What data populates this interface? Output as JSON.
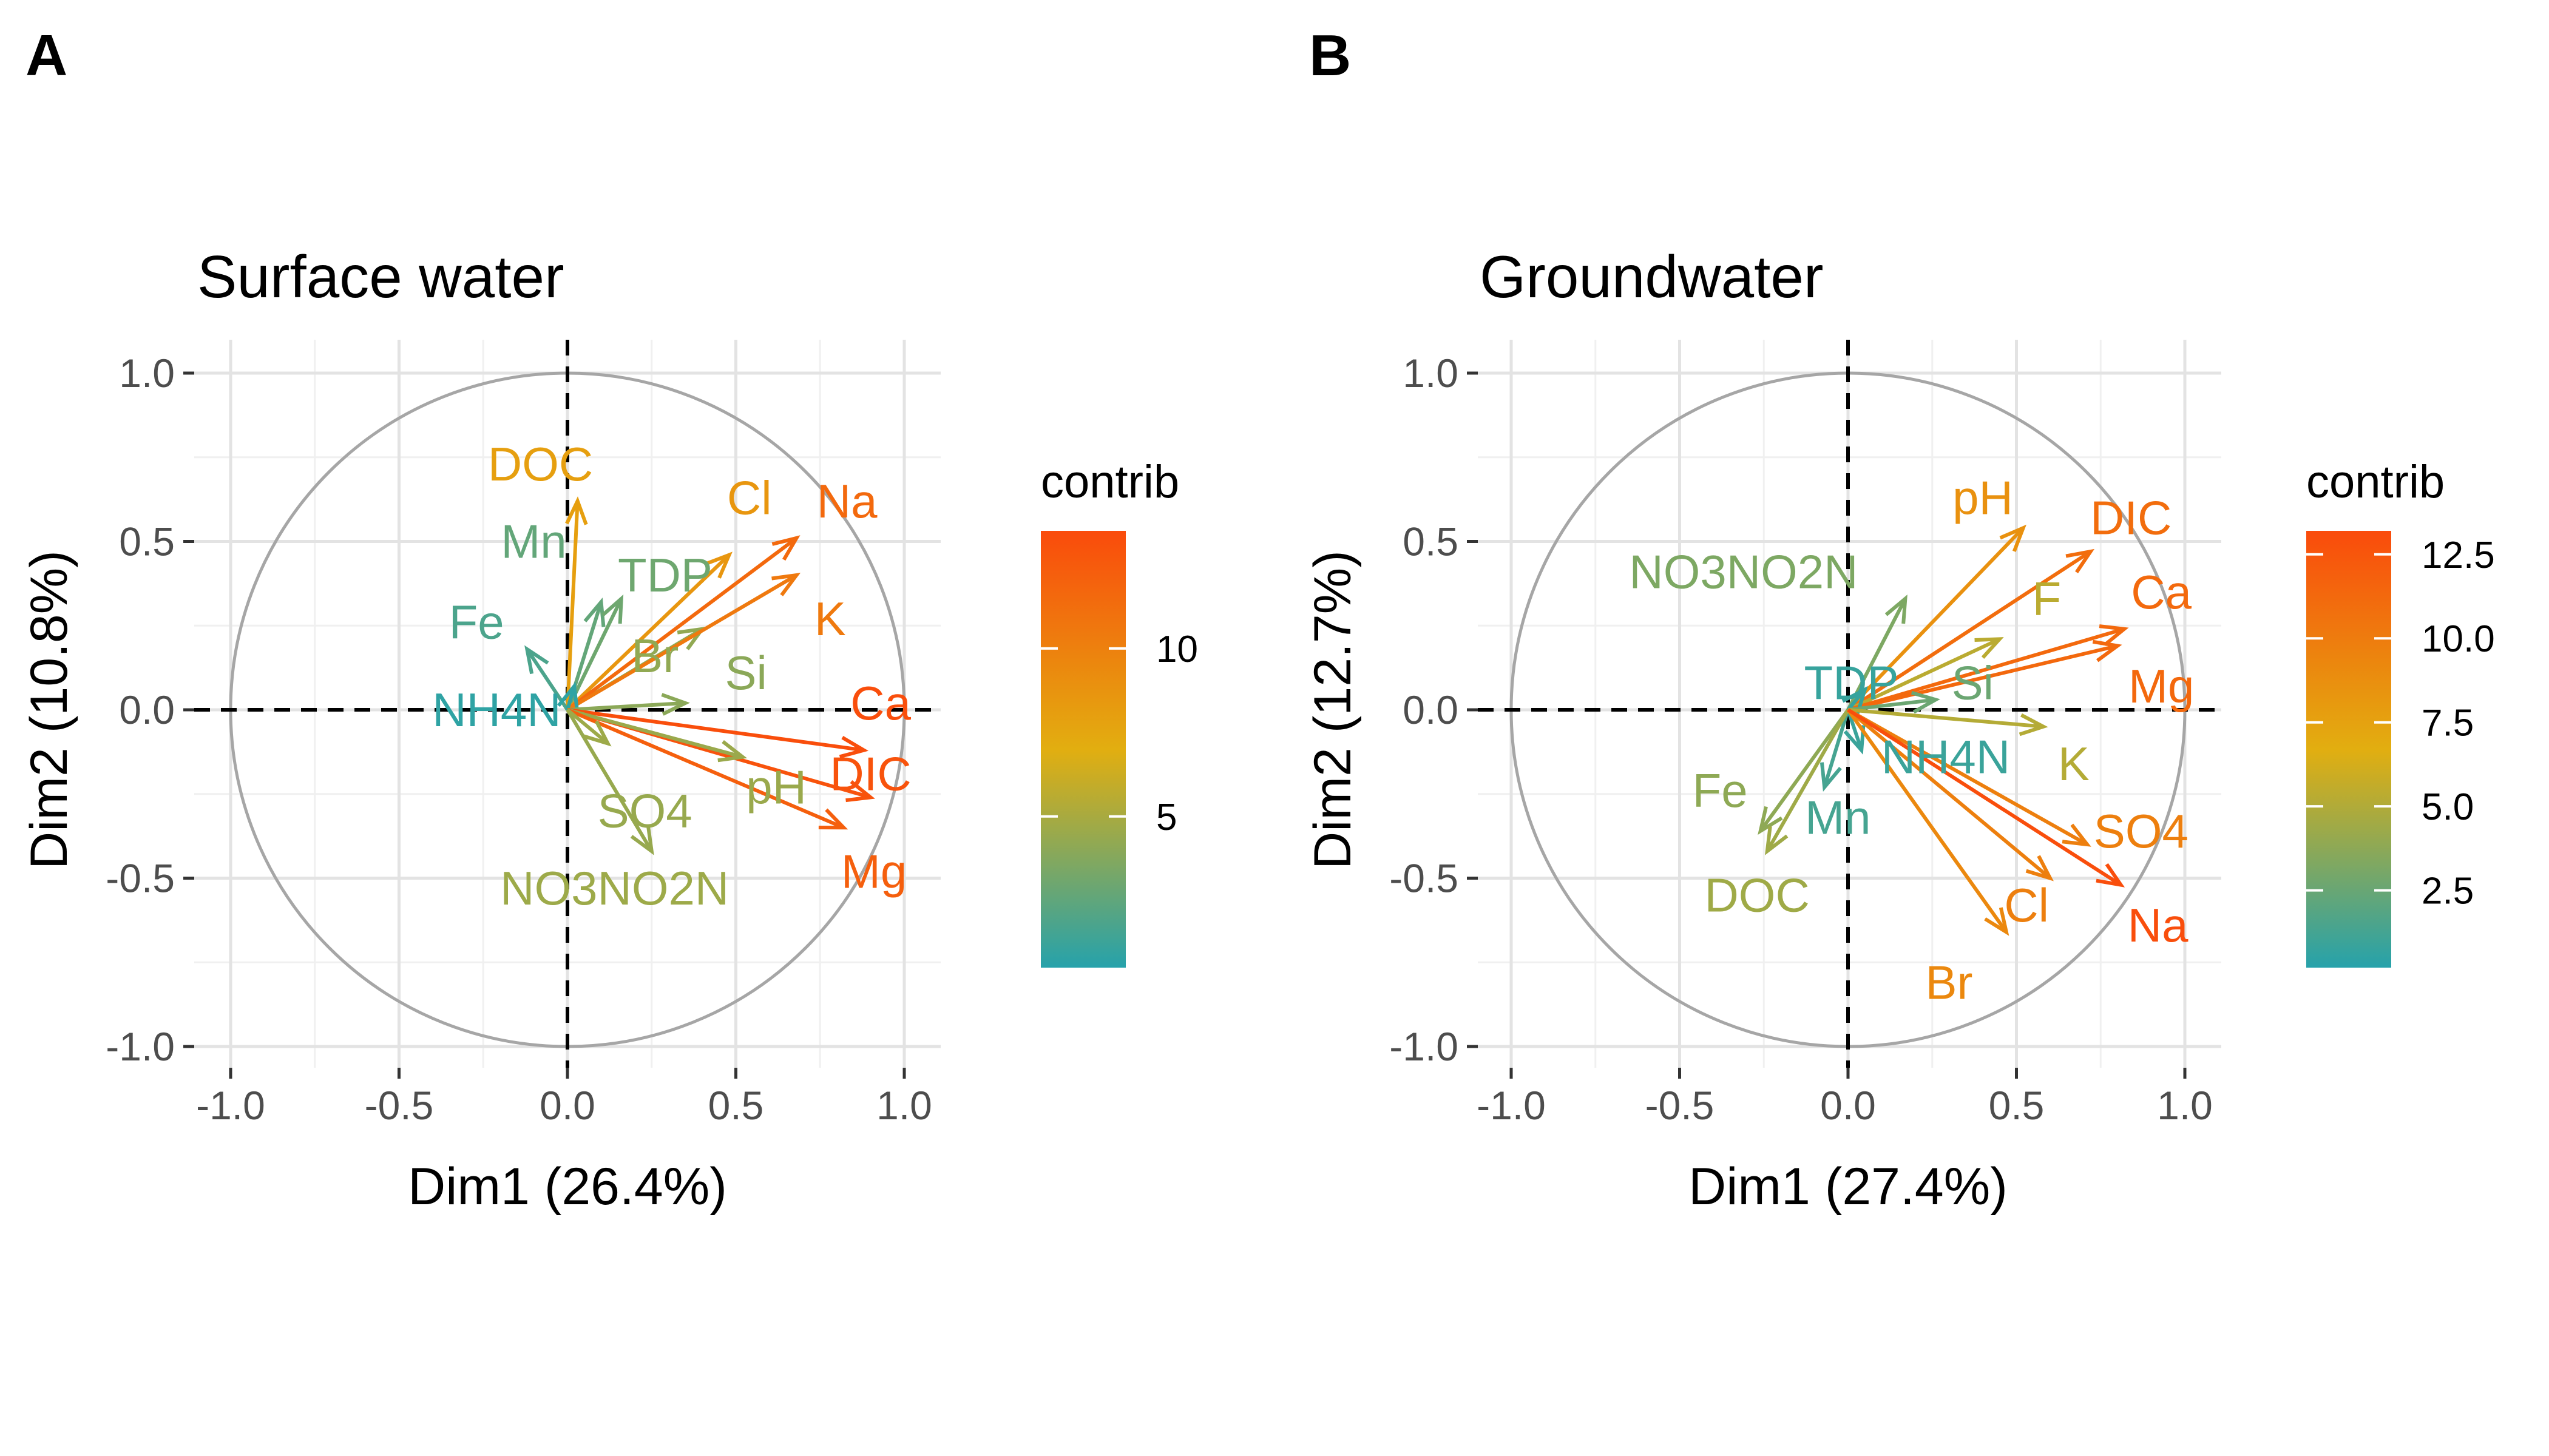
{
  "chart_data": [
    {
      "type": "pca_correlation_circle",
      "panel": "A",
      "title": "Surface water",
      "xlabel": "Dim1 (26.4%)",
      "ylabel": "Dim2 (10.8%)",
      "xlim": [
        -1.0,
        1.0
      ],
      "ylim": [
        -1.0,
        1.0
      ],
      "xticks": [
        "-1.0",
        "-0.5",
        "0.0",
        "0.5",
        "1.0"
      ],
      "yticks": [
        "-1.0",
        "-0.5",
        "0.0",
        "0.5",
        "1.0"
      ],
      "grid": true,
      "legend": {
        "title": "contrib",
        "position": "right",
        "range": [
          0.5,
          13.5
        ],
        "ticks": [
          {
            "value": 5,
            "label": "5"
          },
          {
            "value": 10,
            "label": "10"
          }
        ]
      },
      "variables": [
        {
          "name": "DOC",
          "x": 0.03,
          "y": 0.62,
          "contrib": 8.0
        },
        {
          "name": "Mn",
          "x": 0.1,
          "y": 0.32,
          "contrib": 2.6
        },
        {
          "name": "TDP",
          "x": 0.16,
          "y": 0.33,
          "contrib": 3.0
        },
        {
          "name": "Br",
          "x": 0.4,
          "y": 0.24,
          "contrib": 4.2
        },
        {
          "name": "Cl",
          "x": 0.48,
          "y": 0.46,
          "contrib": 8.6
        },
        {
          "name": "Na",
          "x": 0.68,
          "y": 0.51,
          "contrib": 11.5
        },
        {
          "name": "K",
          "x": 0.68,
          "y": 0.4,
          "contrib": 10.5
        },
        {
          "name": "Fe",
          "x": -0.12,
          "y": 0.18,
          "contrib": 1.8
        },
        {
          "name": "NH4N",
          "x": 0.02,
          "y": 0.07,
          "contrib": 0.8
        },
        {
          "name": "Si",
          "x": 0.35,
          "y": 0.02,
          "contrib": 4.0
        },
        {
          "name": "Ca",
          "x": 0.88,
          "y": -0.12,
          "contrib": 13.3
        },
        {
          "name": "DIC",
          "x": 0.9,
          "y": -0.26,
          "contrib": 13.0
        },
        {
          "name": "pH",
          "x": 0.52,
          "y": -0.14,
          "contrib": 4.5
        },
        {
          "name": "Mg",
          "x": 0.82,
          "y": -0.35,
          "contrib": 12.2
        },
        {
          "name": "SO4",
          "x": 0.25,
          "y": -0.42,
          "contrib": 4.4
        },
        {
          "name": "NO3NO2N",
          "x": 0.12,
          "y": -0.1,
          "contrib": 4.6
        }
      ],
      "labels": [
        {
          "name": "DOC",
          "x": -0.08,
          "y": 0.73,
          "contrib": 8.0
        },
        {
          "name": "Mn",
          "x": -0.1,
          "y": 0.5,
          "contrib": 2.6
        },
        {
          "name": "TDP",
          "x": 0.29,
          "y": 0.4,
          "contrib": 3.0
        },
        {
          "name": "Br",
          "x": 0.26,
          "y": 0.16,
          "contrib": 4.2
        },
        {
          "name": "Cl",
          "x": 0.54,
          "y": 0.63,
          "contrib": 8.6
        },
        {
          "name": "Na",
          "x": 0.83,
          "y": 0.62,
          "contrib": 11.5
        },
        {
          "name": "K",
          "x": 0.78,
          "y": 0.27,
          "contrib": 10.5
        },
        {
          "name": "Fe",
          "x": -0.27,
          "y": 0.26,
          "contrib": 1.8
        },
        {
          "name": "NH4N",
          "x": -0.21,
          "y": 0.0,
          "contrib": 0.8
        },
        {
          "name": "Si",
          "x": 0.53,
          "y": 0.11,
          "contrib": 4.0
        },
        {
          "name": "Ca",
          "x": 0.93,
          "y": 0.02,
          "contrib": 13.3
        },
        {
          "name": "DIC",
          "x": 0.9,
          "y": -0.19,
          "contrib": 13.0
        },
        {
          "name": "pH",
          "x": 0.62,
          "y": -0.23,
          "contrib": 4.5
        },
        {
          "name": "Mg",
          "x": 0.91,
          "y": -0.48,
          "contrib": 12.2
        },
        {
          "name": "SO4",
          "x": 0.23,
          "y": -0.3,
          "contrib": 4.4
        },
        {
          "name": "NO3NO2N",
          "x": 0.14,
          "y": -0.53,
          "contrib": 4.6
        }
      ]
    },
    {
      "type": "pca_correlation_circle",
      "panel": "B",
      "title": "Groundwater",
      "xlabel": "Dim1 (27.4%)",
      "ylabel": "Dim2 (12.7%)",
      "xlim": [
        -1.0,
        1.0
      ],
      "ylim": [
        -1.0,
        1.0
      ],
      "xticks": [
        "-1.0",
        "-0.5",
        "0.0",
        "0.5",
        "1.0"
      ],
      "yticks": [
        "-1.0",
        "-0.5",
        "0.0",
        "0.5",
        "1.0"
      ],
      "grid": true,
      "legend": {
        "title": "contrib",
        "position": "right",
        "range": [
          0.2,
          13.2
        ],
        "ticks": [
          {
            "value": 2.5,
            "label": "2.5"
          },
          {
            "value": 5.0,
            "label": "5.0"
          },
          {
            "value": 7.5,
            "label": "7.5"
          },
          {
            "value": 10.0,
            "label": "10.0"
          },
          {
            "value": 12.5,
            "label": "12.5"
          }
        ]
      },
      "variables": [
        {
          "name": "pH",
          "x": 0.52,
          "y": 0.54,
          "contrib": 8.6
        },
        {
          "name": "DIC",
          "x": 0.72,
          "y": 0.47,
          "contrib": 11.0
        },
        {
          "name": "F",
          "x": 0.45,
          "y": 0.21,
          "contrib": 5.3
        },
        {
          "name": "Ca",
          "x": 0.82,
          "y": 0.24,
          "contrib": 11.2
        },
        {
          "name": "Mg",
          "x": 0.8,
          "y": 0.19,
          "contrib": 11.3
        },
        {
          "name": "NO3NO2N",
          "x": 0.17,
          "y": 0.33,
          "contrib": 3.2
        },
        {
          "name": "TDP",
          "x": 0.05,
          "y": 0.06,
          "contrib": 0.8
        },
        {
          "name": "Si",
          "x": 0.26,
          "y": 0.03,
          "contrib": 2.6
        },
        {
          "name": "K",
          "x": 0.58,
          "y": -0.05,
          "contrib": 5.1
        },
        {
          "name": "NH4N",
          "x": 0.04,
          "y": -0.12,
          "contrib": 0.9
        },
        {
          "name": "Fe",
          "x": -0.26,
          "y": -0.36,
          "contrib": 3.8
        },
        {
          "name": "Mn",
          "x": -0.07,
          "y": -0.23,
          "contrib": 1.3
        },
        {
          "name": "DOC",
          "x": -0.24,
          "y": -0.42,
          "contrib": 4.4
        },
        {
          "name": "SO4",
          "x": 0.71,
          "y": -0.4,
          "contrib": 9.8
        },
        {
          "name": "Cl",
          "x": 0.6,
          "y": -0.5,
          "contrib": 9.8
        },
        {
          "name": "Br",
          "x": 0.47,
          "y": -0.66,
          "contrib": 9.2
        },
        {
          "name": "Na",
          "x": 0.81,
          "y": -0.52,
          "contrib": 13.0
        }
      ],
      "labels": [
        {
          "name": "pH",
          "x": 0.4,
          "y": 0.63,
          "contrib": 8.6
        },
        {
          "name": "DIC",
          "x": 0.84,
          "y": 0.57,
          "contrib": 11.0
        },
        {
          "name": "F",
          "x": 0.59,
          "y": 0.33,
          "contrib": 5.3
        },
        {
          "name": "Ca",
          "x": 0.93,
          "y": 0.35,
          "contrib": 11.2
        },
        {
          "name": "Mg",
          "x": 0.93,
          "y": 0.07,
          "contrib": 11.3
        },
        {
          "name": "NO3NO2N",
          "x": -0.31,
          "y": 0.41,
          "contrib": 3.2
        },
        {
          "name": "TDP",
          "x": 0.01,
          "y": 0.08,
          "contrib": 0.8
        },
        {
          "name": "Si",
          "x": 0.37,
          "y": 0.08,
          "contrib": 2.6
        },
        {
          "name": "K",
          "x": 0.67,
          "y": -0.16,
          "contrib": 5.1
        },
        {
          "name": "NH4N",
          "x": 0.29,
          "y": -0.14,
          "contrib": 0.9
        },
        {
          "name": "Fe",
          "x": -0.38,
          "y": -0.24,
          "contrib": 3.8
        },
        {
          "name": "Mn",
          "x": -0.03,
          "y": -0.32,
          "contrib": 1.3
        },
        {
          "name": "DOC",
          "x": -0.27,
          "y": -0.55,
          "contrib": 4.4
        },
        {
          "name": "SO4",
          "x": 0.87,
          "y": -0.36,
          "contrib": 9.8
        },
        {
          "name": "Cl",
          "x": 0.53,
          "y": -0.58,
          "contrib": 9.8
        },
        {
          "name": "Br",
          "x": 0.3,
          "y": -0.81,
          "contrib": 9.2
        },
        {
          "name": "Na",
          "x": 0.92,
          "y": -0.64,
          "contrib": 13.0
        }
      ]
    }
  ]
}
